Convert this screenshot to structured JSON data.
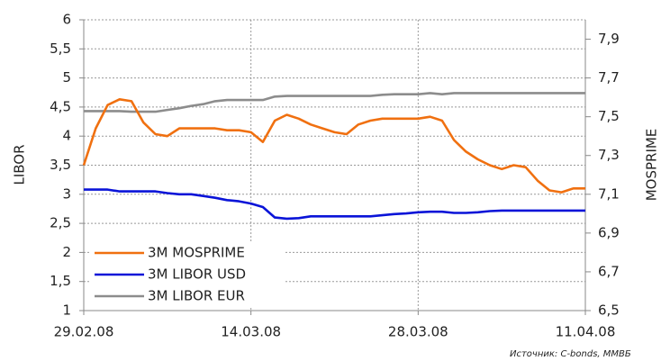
{
  "chart_data": {
    "type": "line",
    "y_label": "LIBOR",
    "y2_label": "MOSPRIME",
    "source": "Источник: C-bonds, ММВБ",
    "x": [
      "2008-02-29",
      "2008-03-01",
      "2008-03-02",
      "2008-03-03",
      "2008-03-04",
      "2008-03-05",
      "2008-03-06",
      "2008-03-07",
      "2008-03-08",
      "2008-03-09",
      "2008-03-10",
      "2008-03-11",
      "2008-03-12",
      "2008-03-13",
      "2008-03-14",
      "2008-03-15",
      "2008-03-16",
      "2008-03-17",
      "2008-03-18",
      "2008-03-19",
      "2008-03-20",
      "2008-03-21",
      "2008-03-22",
      "2008-03-23",
      "2008-03-24",
      "2008-03-25",
      "2008-03-26",
      "2008-03-27",
      "2008-03-28",
      "2008-03-29",
      "2008-03-30",
      "2008-03-31",
      "2008-04-01",
      "2008-04-02",
      "2008-04-03",
      "2008-04-04",
      "2008-04-05",
      "2008-04-06",
      "2008-04-07",
      "2008-04-08",
      "2008-04-09",
      "2008-04-10",
      "2008-04-11"
    ],
    "xlim": [
      "2008-02-29",
      "2008-04-11"
    ],
    "xticks": [
      {
        "value": "2008-02-29",
        "label": "29.02.08"
      },
      {
        "value": "2008-03-14",
        "label": "14.03.08"
      },
      {
        "value": "2008-03-28",
        "label": "28.03.08"
      },
      {
        "value": "2008-04-11",
        "label": "11.04.08"
      }
    ],
    "ylim": [
      1,
      6
    ],
    "yticks": [
      1,
      {
        "value": 1.5,
        "label": "1,5"
      },
      2,
      {
        "value": 2.5,
        "label": "2,5"
      },
      3,
      {
        "value": 3.5,
        "label": "3,5"
      },
      4,
      {
        "value": 4.5,
        "label": "4,5"
      },
      5,
      {
        "value": 5.5,
        "label": "5,5"
      },
      6
    ],
    "y2lim": [
      6.5,
      8.0
    ],
    "y2ticks": [
      {
        "value": 6.5,
        "label": "6,5"
      },
      {
        "value": 6.7,
        "label": "6,7"
      },
      {
        "value": 6.9,
        "label": "6,9"
      },
      {
        "value": 7.1,
        "label": "7,1"
      },
      {
        "value": 7.3,
        "label": "7,3"
      },
      {
        "value": 7.5,
        "label": "7,5"
      },
      {
        "value": 7.7,
        "label": "7,7"
      },
      {
        "value": 7.9,
        "label": "7,9"
      }
    ],
    "grid": true,
    "legend": "lower left",
    "series": [
      {
        "name": "3M MOSPRIME",
        "color": "#f07010",
        "axis": "y2",
        "values": [
          7.25,
          7.44,
          7.56,
          7.59,
          7.58,
          7.47,
          7.41,
          7.4,
          7.44,
          7.44,
          7.44,
          7.44,
          7.43,
          7.43,
          7.42,
          7.37,
          7.48,
          7.51,
          7.49,
          7.46,
          7.44,
          7.42,
          7.41,
          7.46,
          7.48,
          7.49,
          7.49,
          7.49,
          7.49,
          7.5,
          7.48,
          7.38,
          7.32,
          7.28,
          7.25,
          7.23,
          7.25,
          7.24,
          7.17,
          7.12,
          7.11,
          7.13,
          7.13
        ]
      },
      {
        "name": "3M LIBOR USD",
        "color": "#0a14d8",
        "values": [
          3.08,
          3.08,
          3.08,
          3.05,
          3.05,
          3.05,
          3.05,
          3.02,
          3.0,
          3.0,
          2.97,
          2.94,
          2.9,
          2.88,
          2.84,
          2.78,
          2.6,
          2.58,
          2.59,
          2.62,
          2.62,
          2.62,
          2.62,
          2.62,
          2.62,
          2.64,
          2.66,
          2.67,
          2.69,
          2.7,
          2.7,
          2.68,
          2.68,
          2.69,
          2.71,
          2.72,
          2.72,
          2.72,
          2.72,
          2.72,
          2.72,
          2.72,
          2.72
        ]
      },
      {
        "name": "3M LIBOR EUR",
        "color": "#8c8c8c",
        "values": [
          4.43,
          4.43,
          4.43,
          4.43,
          4.42,
          4.42,
          4.42,
          4.45,
          4.48,
          4.52,
          4.55,
          4.6,
          4.62,
          4.62,
          4.62,
          4.62,
          4.68,
          4.69,
          4.69,
          4.69,
          4.69,
          4.69,
          4.69,
          4.69,
          4.69,
          4.71,
          4.72,
          4.72,
          4.72,
          4.74,
          4.72,
          4.74,
          4.74,
          4.74,
          4.74,
          4.74,
          4.74,
          4.74,
          4.74,
          4.74,
          4.74,
          4.74,
          4.74
        ]
      }
    ]
  }
}
